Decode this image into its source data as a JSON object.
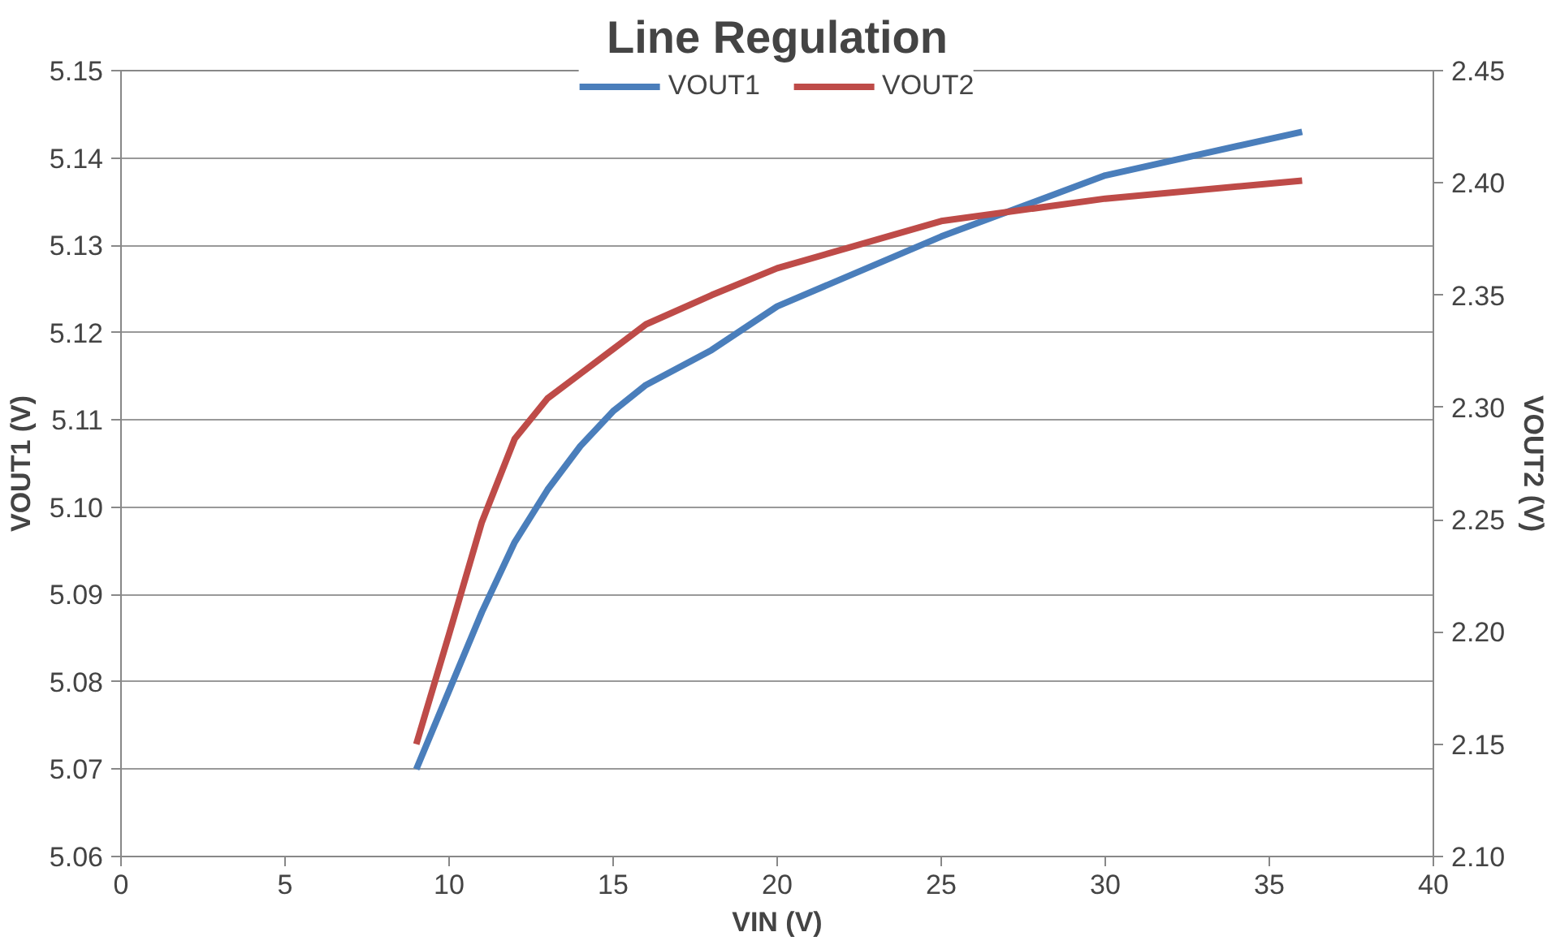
{
  "chart_data": {
    "type": "line",
    "title": "Line Regulation",
    "xlabel": "VIN (V)",
    "ylabel": "VOUT1 (V)",
    "y2label": "VOUT2 (V)",
    "xlim": [
      0,
      40
    ],
    "xticks": [
      0,
      5,
      10,
      15,
      20,
      25,
      30,
      35,
      40
    ],
    "ylim": [
      5.06,
      5.15
    ],
    "yticks": [
      {
        "value": 5.06,
        "label": "5.06"
      },
      {
        "value": 5.07,
        "label": "5.07"
      },
      {
        "value": 5.08,
        "label": "5.08"
      },
      {
        "value": 5.09,
        "label": "5.09"
      },
      {
        "value": 5.1,
        "label": "5.10"
      },
      {
        "value": 5.11,
        "label": "5.11"
      },
      {
        "value": 5.12,
        "label": "5.12"
      },
      {
        "value": 5.13,
        "label": "5.13"
      },
      {
        "value": 5.14,
        "label": "5.14"
      },
      {
        "value": 5.15,
        "label": "5.15"
      }
    ],
    "y2lim": [
      2.1,
      2.45
    ],
    "y2ticks": [
      {
        "value": 2.1,
        "label": "2.10"
      },
      {
        "value": 2.15,
        "label": "2.15"
      },
      {
        "value": 2.2,
        "label": "2.20"
      },
      {
        "value": 2.25,
        "label": "2.25"
      },
      {
        "value": 2.3,
        "label": "2.30"
      },
      {
        "value": 2.35,
        "label": "2.35"
      },
      {
        "value": 2.4,
        "label": "2.40"
      },
      {
        "value": 2.45,
        "label": "2.45"
      }
    ],
    "grid": "y",
    "legend": "top",
    "marker": "none",
    "line_style": "solid",
    "x": [
      9,
      10,
      11,
      12,
      13,
      14,
      15,
      16,
      18,
      20,
      25,
      30,
      36
    ],
    "series": [
      {
        "name": "VOUT1",
        "color": "#4a7ebb",
        "values": [
          5.07,
          5.079,
          5.088,
          5.096,
          5.102,
          5.107,
          5.111,
          5.114,
          5.118,
          5.123,
          5.131,
          5.138,
          5.143
        ]
      },
      {
        "name": "VOUT2",
        "color": "#be4b48",
        "axis": "y2",
        "values": [
          2.15,
          2.199,
          2.249,
          2.286,
          2.304,
          2.315,
          2.326,
          2.337,
          2.35,
          2.362,
          2.383,
          2.393,
          2.401
        ]
      }
    ]
  }
}
